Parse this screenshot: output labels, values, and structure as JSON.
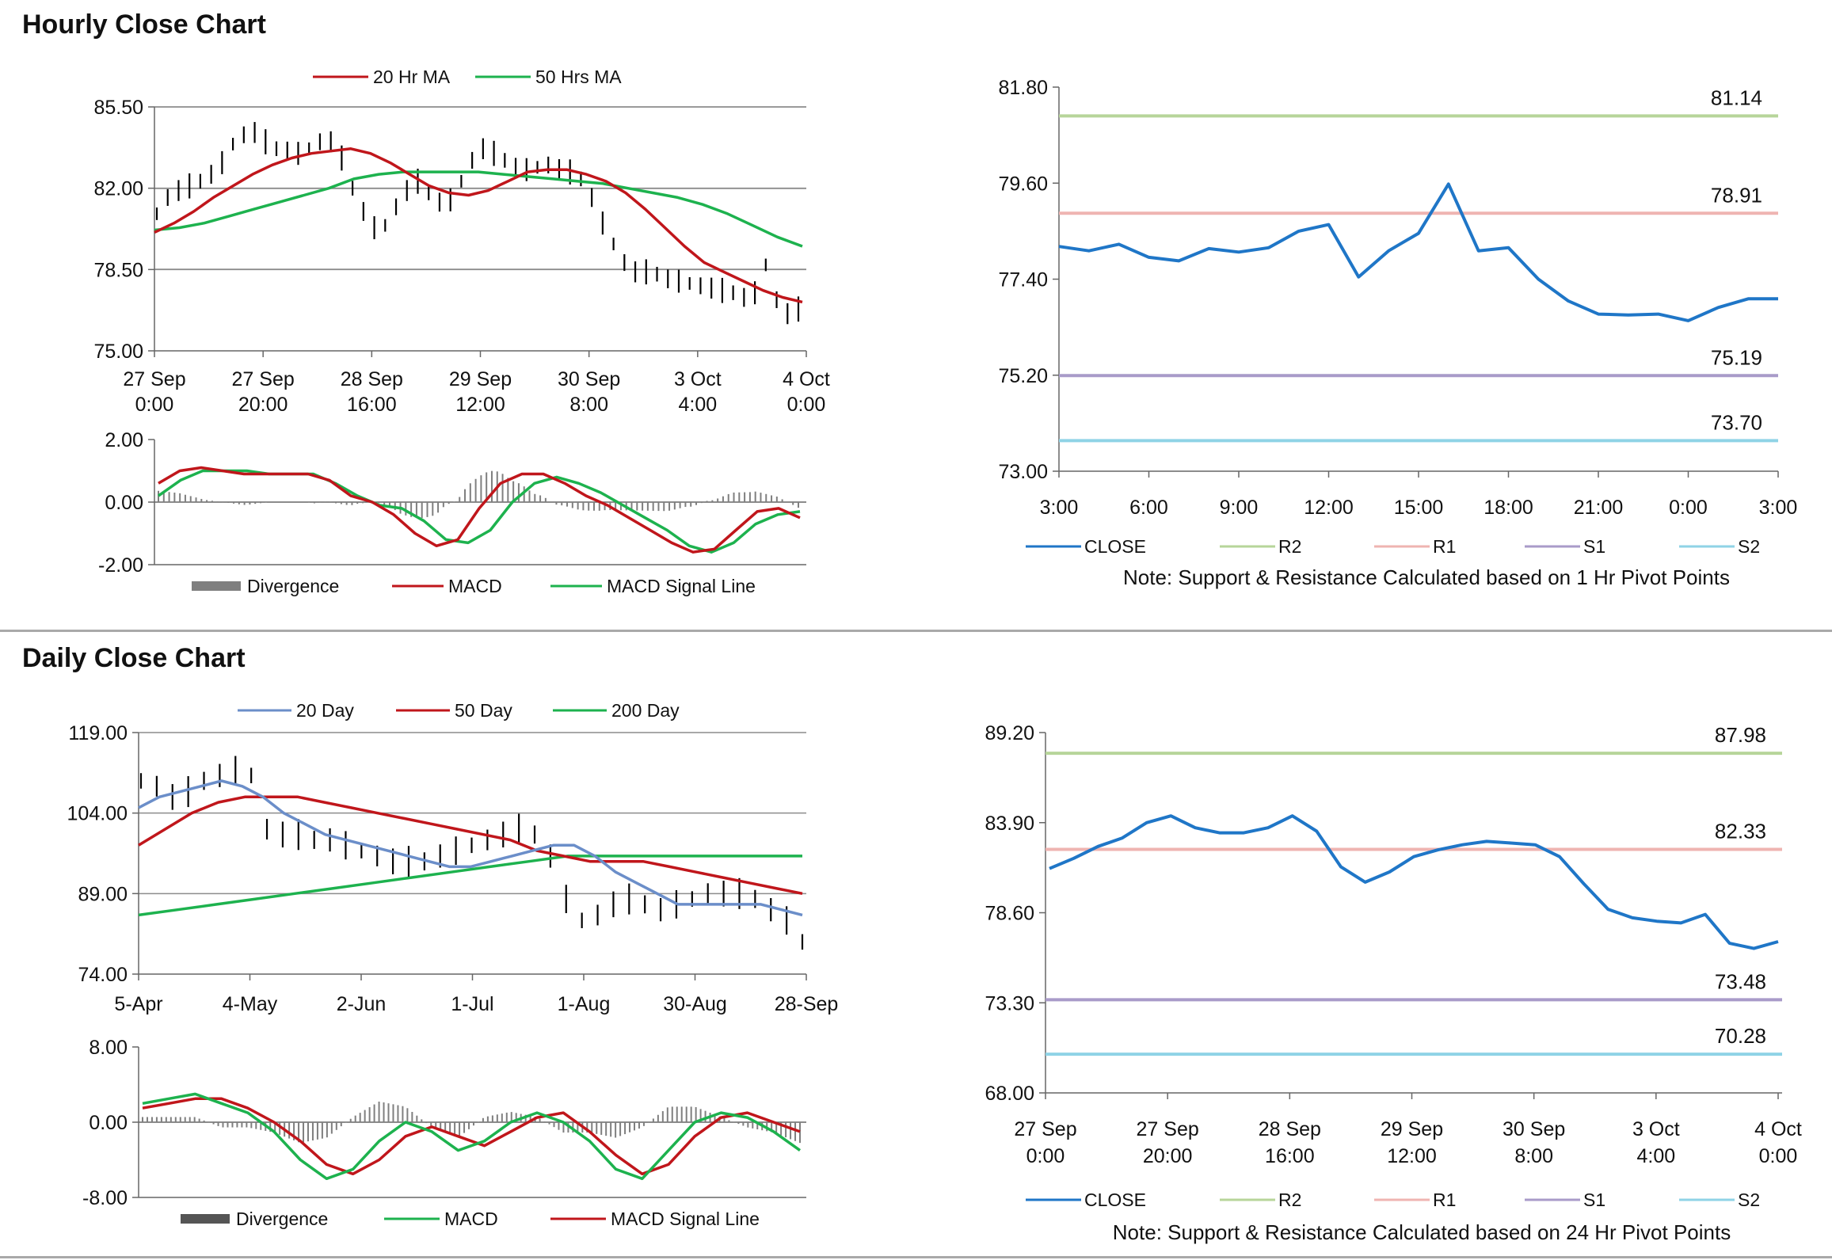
{
  "titles": {
    "hourly": "Hourly Close Chart",
    "daily": "Daily Close Chart"
  },
  "colors": {
    "red": "#c0161b",
    "green": "#1db24e",
    "blue": "#6b8ec9",
    "close_blue": "#1f76c7",
    "r2": "#b7d59a",
    "r1": "#efb4b1",
    "s1": "#a99bc9",
    "s2": "#8fd3e6",
    "divergence": "#7f7f7f",
    "price": "#000000"
  },
  "chart_data": [
    {
      "id": "hourly_price",
      "type": "line",
      "legend": [
        "20 Hr MA",
        "50 Hrs MA"
      ],
      "y_ticks": [
        "85.50",
        "82.00",
        "78.50",
        "75.00"
      ],
      "ylim": [
        75,
        85.5
      ],
      "x_tick_lines1": [
        "27 Sep",
        "27 Sep",
        "28 Sep",
        "29 Sep",
        "30 Sep",
        "3 Oct",
        "4 Oct"
      ],
      "x_tick_lines2": [
        "0:00",
        "20:00",
        "16:00",
        "12:00",
        "8:00",
        "4:00",
        "0:00"
      ],
      "series": [
        {
          "name": "Price",
          "values": [
            80.9,
            81.6,
            81.9,
            82.1,
            82.3,
            82.6,
            83.1,
            83.9,
            84.3,
            84.4,
            84.0,
            83.7,
            83.6,
            83.5,
            83.7,
            84.0,
            84.0,
            83.3,
            82.0,
            81.0,
            80.3,
            80.4,
            81.2,
            81.9,
            82.3,
            81.8,
            81.4,
            81.5,
            82.3,
            83.2,
            83.7,
            83.5,
            83.2,
            82.9,
            82.8,
            82.9,
            83.0,
            82.8,
            82.7,
            82.4,
            81.6,
            80.5,
            79.6,
            78.8,
            78.4,
            78.4,
            78.3,
            78.1,
            78.0,
            77.9,
            77.8,
            77.7,
            77.6,
            77.5,
            77.3,
            77.5,
            78.7,
            77.2,
            76.6,
            76.8
          ]
        },
        {
          "name": "20 Hr MA",
          "values": [
            80.1,
            80.5,
            81.0,
            81.6,
            82.1,
            82.6,
            83.0,
            83.3,
            83.5,
            83.6,
            83.7,
            83.5,
            83.1,
            82.6,
            82.1,
            81.8,
            81.7,
            81.9,
            82.3,
            82.7,
            82.8,
            82.8,
            82.6,
            82.3,
            81.8,
            81.1,
            80.3,
            79.5,
            78.8,
            78.4,
            78.0,
            77.6,
            77.3,
            77.1
          ]
        },
        {
          "name": "50 Hrs MA",
          "values": [
            80.2,
            80.3,
            80.5,
            80.8,
            81.1,
            81.4,
            81.7,
            82.0,
            82.4,
            82.6,
            82.7,
            82.7,
            82.7,
            82.7,
            82.6,
            82.5,
            82.4,
            82.3,
            82.2,
            82.0,
            81.8,
            81.6,
            81.3,
            80.9,
            80.4,
            79.9,
            79.5
          ]
        }
      ]
    },
    {
      "id": "hourly_macd",
      "type": "line",
      "legend": [
        "Divergence",
        "MACD",
        "MACD Signal Line"
      ],
      "y_ticks": [
        "2.00",
        "0.00",
        "-2.00"
      ],
      "ylim": [
        -2,
        2
      ],
      "series": [
        {
          "name": "MACD",
          "values": [
            0.6,
            1.0,
            1.1,
            1.0,
            0.9,
            0.9,
            0.9,
            0.9,
            0.7,
            0.2,
            0.0,
            -0.4,
            -1.0,
            -1.4,
            -1.2,
            -0.2,
            0.6,
            0.9,
            0.9,
            0.6,
            0.2,
            -0.1,
            -0.5,
            -0.9,
            -1.3,
            -1.6,
            -1.5,
            -0.9,
            -0.3,
            -0.2,
            -0.5
          ]
        },
        {
          "name": "MACD Signal Line",
          "values": [
            0.2,
            0.7,
            1.0,
            1.0,
            1.0,
            0.9,
            0.9,
            0.9,
            0.6,
            0.2,
            -0.1,
            -0.2,
            -0.6,
            -1.2,
            -1.3,
            -0.9,
            0.0,
            0.6,
            0.8,
            0.6,
            0.3,
            -0.1,
            -0.5,
            -0.9,
            -1.4,
            -1.6,
            -1.3,
            -0.7,
            -0.4,
            -0.3
          ]
        }
      ]
    },
    {
      "id": "hourly_pivot",
      "type": "line",
      "y_ticks": [
        "81.80",
        "79.60",
        "77.40",
        "75.20",
        "73.00"
      ],
      "ylim": [
        73,
        81.8
      ],
      "x_ticks": [
        "3:00",
        "6:00",
        "9:00",
        "12:00",
        "15:00",
        "18:00",
        "21:00",
        "0:00",
        "3:00"
      ],
      "levels": {
        "R2": "81.14",
        "R1": "78.91",
        "S1": "75.19",
        "S2": "73.70"
      },
      "legend": [
        "CLOSE",
        "R2",
        "R1",
        "S1",
        "S2"
      ],
      "note": "Note: Support & Resistance Calculated based on 1 Hr Pivot Points",
      "series": [
        {
          "name": "CLOSE",
          "values": [
            78.15,
            78.05,
            78.2,
            77.9,
            77.82,
            78.1,
            78.02,
            78.12,
            78.5,
            78.65,
            77.45,
            78.05,
            78.45,
            79.58,
            78.05,
            78.12,
            77.4,
            76.9,
            76.6,
            76.58,
            76.6,
            76.45,
            76.75,
            76.95,
            76.95
          ]
        }
      ]
    },
    {
      "id": "daily_price",
      "type": "line",
      "legend": [
        "20 Day",
        "50 Day",
        "200 Day"
      ],
      "y_ticks": [
        "119.00",
        "104.00",
        "89.00",
        "74.00"
      ],
      "ylim": [
        74,
        119
      ],
      "x_ticks": [
        "5-Apr",
        "4-May",
        "2-Jun",
        "1-Jul",
        "1-Aug",
        "30-Aug",
        "28-Sep"
      ],
      "series": [
        {
          "name": "Price",
          "values": [
            110,
            109,
            107,
            108,
            110,
            111,
            112,
            111,
            101,
            100,
            100,
            99,
            99,
            98,
            97,
            96,
            95,
            95,
            95,
            96,
            97,
            98,
            99,
            100,
            101,
            100,
            96,
            88,
            84,
            85,
            87,
            88,
            87,
            86,
            87,
            88,
            89,
            89,
            89,
            88,
            86,
            84,
            80
          ]
        },
        {
          "name": "20 Day",
          "values": [
            105,
            107,
            108,
            109,
            110,
            109,
            107,
            104,
            102,
            100,
            99,
            98,
            97,
            96,
            95,
            94,
            94,
            95,
            96,
            97,
            98,
            98,
            96,
            93,
            91,
            89,
            87,
            87,
            87,
            87,
            87,
            86,
            85
          ]
        },
        {
          "name": "50 Day",
          "values": [
            98,
            101,
            104,
            106,
            107,
            107,
            107,
            106,
            105,
            104,
            103,
            102,
            101,
            100,
            99,
            97,
            96,
            95,
            95,
            95,
            94,
            93,
            92,
            91,
            90,
            89
          ]
        },
        {
          "name": "200 Day",
          "values": [
            85,
            86,
            87,
            88,
            89,
            90,
            91,
            92,
            93,
            94,
            95,
            96,
            96,
            96,
            96,
            96,
            96,
            96
          ]
        }
      ]
    },
    {
      "id": "daily_macd",
      "type": "line",
      "legend": [
        "Divergence",
        "MACD",
        "MACD Signal Line"
      ],
      "y_ticks": [
        "8.00",
        "0.00",
        "-8.00"
      ],
      "ylim": [
        -8,
        8
      ],
      "series": [
        {
          "name": "MACD",
          "values": [
            2,
            2.5,
            3,
            2,
            1,
            -1,
            -4,
            -6,
            -5,
            -2,
            0,
            -1,
            -3,
            -2,
            0,
            1,
            0,
            -2,
            -5,
            -6,
            -3,
            0,
            1,
            0.5,
            -1,
            -3
          ]
        },
        {
          "name": "MACD Signal Line",
          "values": [
            1.5,
            2,
            2.5,
            2.5,
            1.5,
            0,
            -2,
            -4.5,
            -5.5,
            -4,
            -1.5,
            -0.5,
            -1.5,
            -2.5,
            -1,
            0.5,
            1,
            -1,
            -3.5,
            -5.5,
            -4.5,
            -1.5,
            0.5,
            1,
            0,
            -1
          ]
        }
      ]
    },
    {
      "id": "daily_pivot",
      "type": "line",
      "y_ticks": [
        "89.20",
        "83.90",
        "78.60",
        "73.30",
        "68.00"
      ],
      "ylim": [
        68,
        89.2
      ],
      "x_tick_lines1": [
        "27 Sep",
        "27 Sep",
        "28 Sep",
        "29 Sep",
        "30 Sep",
        "3 Oct",
        "4 Oct"
      ],
      "x_tick_lines2": [
        "0:00",
        "20:00",
        "16:00",
        "12:00",
        "8:00",
        "4:00",
        "0:00"
      ],
      "levels": {
        "R2": "87.98",
        "R1": "82.33",
        "S1": "73.48",
        "S2": "70.28"
      },
      "legend": [
        "CLOSE",
        "R2",
        "R1",
        "S1",
        "S2"
      ],
      "note": "Note:  Support & Resistance Calculated based on 24 Hr Pivot Points",
      "series": [
        {
          "name": "CLOSE",
          "values": [
            81.2,
            81.8,
            82.5,
            83.0,
            83.9,
            84.3,
            83.6,
            83.3,
            83.3,
            83.6,
            84.3,
            83.4,
            81.3,
            80.4,
            81.0,
            81.9,
            82.3,
            82.6,
            82.8,
            82.7,
            82.6,
            81.9,
            80.3,
            78.8,
            78.3,
            78.1,
            78.0,
            78.5,
            76.8,
            76.5,
            76.9
          ]
        }
      ]
    }
  ]
}
